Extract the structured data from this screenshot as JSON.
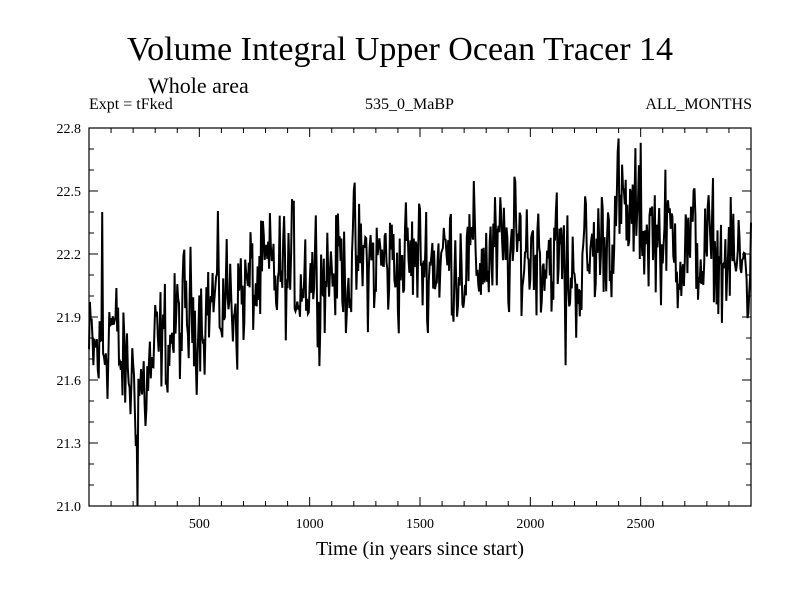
{
  "chart_data": {
    "type": "line",
    "title": "Volume Integral Upper Ocean Tracer 14",
    "subtitle": "Whole area",
    "header_left": "Expt = tFked",
    "header_center": "535_0_MaBP",
    "header_right": "ALL_MONTHS",
    "xlabel": "Time (in years since start)",
    "ylabel": "",
    "xlim": [
      0,
      3000
    ],
    "ylim": [
      21.0,
      22.8
    ],
    "xticks": [
      500,
      1000,
      1500,
      2000,
      2500
    ],
    "yticks": [
      21.0,
      21.3,
      21.6,
      21.9,
      22.2,
      22.5,
      22.8
    ],
    "ytick_labels": [
      "21.0",
      "21.3",
      "21.6",
      "21.9",
      "22.2",
      "22.5",
      "22.8"
    ],
    "series": [
      {
        "color": "#000000",
        "trend": {
          "x": [
            0,
            60,
            100,
            150,
            200,
            250,
            300,
            400,
            500,
            600,
            700,
            800,
            1000,
            1200,
            1400,
            1600,
            1800,
            2000,
            2100,
            2200,
            2300,
            2400,
            2500,
            2600,
            2800,
            3000
          ],
          "y": [
            21.72,
            21.72,
            21.9,
            21.65,
            21.6,
            21.55,
            21.7,
            21.85,
            21.95,
            21.98,
            22.02,
            22.08,
            22.12,
            22.15,
            22.17,
            22.18,
            22.18,
            22.23,
            22.2,
            22.1,
            22.22,
            22.38,
            22.34,
            22.28,
            22.2,
            22.12
          ]
        },
        "noise_amplitude": 0.22,
        "extremes": [
          {
            "x": 60,
            "y": 22.4
          },
          {
            "x": 90,
            "y": 21.27
          },
          {
            "x": 220,
            "y": 21.0
          },
          {
            "x": 1310,
            "y": 21.62
          },
          {
            "x": 2160,
            "y": 21.67
          },
          {
            "x": 2400,
            "y": 22.75
          },
          {
            "x": 2500,
            "y": 22.73
          },
          {
            "x": 2990,
            "y": 22.6
          }
        ]
      }
    ]
  }
}
